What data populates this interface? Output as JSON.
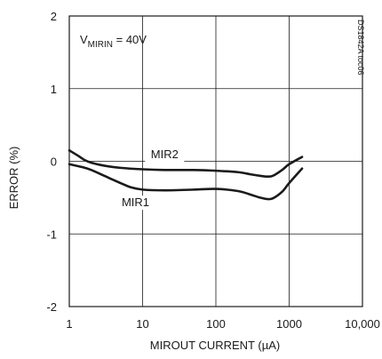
{
  "chart_data": {
    "type": "line",
    "title": "",
    "xlabel": "MIROUT CURRENT (µA)",
    "ylabel": "ERROR (%)",
    "x_scale": "log",
    "xlim": [
      1,
      10000
    ],
    "ylim": [
      -2,
      2
    ],
    "grid": true,
    "x_ticks": [
      {
        "value": 1,
        "label": "1"
      },
      {
        "value": 10,
        "label": "10"
      },
      {
        "value": 100,
        "label": "100"
      },
      {
        "value": 1000,
        "label": "1000"
      },
      {
        "value": 10000,
        "label": "10,000"
      }
    ],
    "y_ticks": [
      {
        "value": 2,
        "label": "2"
      },
      {
        "value": 1,
        "label": "1"
      },
      {
        "value": 0,
        "label": "0"
      },
      {
        "value": -1,
        "label": "-1"
      },
      {
        "value": -2,
        "label": "-2"
      }
    ],
    "annotation": {
      "prefix": "V",
      "subscript": "MIRIN",
      "suffix": " = 40V"
    },
    "figure_code": "DS1842A toc06",
    "series": [
      {
        "name": "MIR2",
        "x": [
          1,
          1.3,
          1.6,
          2,
          3,
          5,
          10,
          20,
          50,
          100,
          200,
          300,
          400,
          500,
          600,
          800,
          1000,
          1500
        ],
        "y": [
          0.15,
          0.08,
          0.02,
          -0.02,
          -0.06,
          -0.09,
          -0.11,
          -0.12,
          -0.12,
          -0.13,
          -0.15,
          -0.18,
          -0.2,
          -0.21,
          -0.2,
          -0.12,
          -0.04,
          0.06
        ]
      },
      {
        "name": "MIR1",
        "x": [
          1,
          1.5,
          2,
          3,
          5,
          7,
          10,
          20,
          50,
          100,
          200,
          300,
          400,
          500,
          600,
          800,
          1000,
          1500
        ],
        "y": [
          -0.04,
          -0.08,
          -0.12,
          -0.2,
          -0.3,
          -0.36,
          -0.39,
          -0.4,
          -0.39,
          -0.38,
          -0.41,
          -0.46,
          -0.5,
          -0.52,
          -0.51,
          -0.42,
          -0.3,
          -0.1
        ]
      }
    ],
    "series_label_anchor": [
      {
        "x": 20,
        "y": 0.04
      },
      {
        "x": 8,
        "y": -0.62
      }
    ]
  }
}
